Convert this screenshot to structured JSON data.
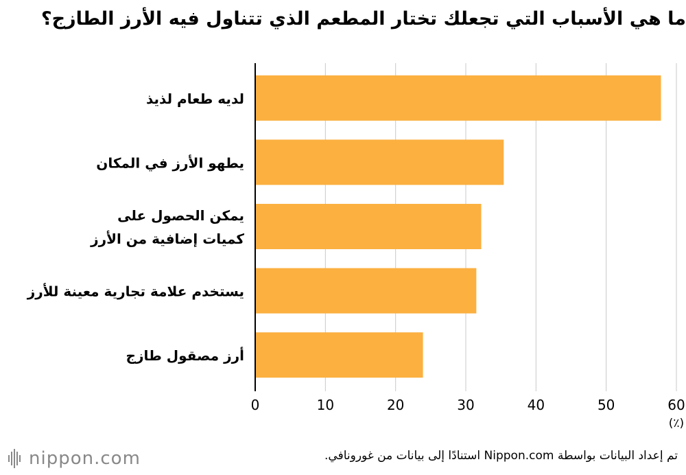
{
  "header": {
    "title": "ما هي الأسباب التي تجعلك تختار المطعم الذي تتناول فيه الأرز الطازج؟"
  },
  "chart_data": {
    "type": "bar",
    "orientation": "horizontal",
    "title": "ما هي الأسباب التي تجعلك تختار المطعم الذي تتناول فيه الأرز الطازج؟",
    "categories": [
      [
        "لديه طعام لذيذ"
      ],
      [
        "يطهو الأرز في المكان"
      ],
      [
        "يمكن الحصول على",
        "كميات إضافية من الأرز"
      ],
      [
        "يستخدم علامة تجارية معينة للأرز"
      ],
      [
        "أرز مصقول طازج"
      ]
    ],
    "values": [
      57.8,
      35.4,
      32.2,
      31.5,
      23.9
    ],
    "xlim": [
      0,
      60
    ],
    "xticks": [
      "0",
      "10",
      "20",
      "30",
      "40",
      "50",
      "60"
    ],
    "unit_label": "(٪)",
    "grid": true,
    "bar_color": "#FBB040"
  },
  "footer": {
    "source": "تم إعداد البيانات بواسطة Nippon.com استنادًا إلى بيانات من غورونافي."
  },
  "logo": {
    "text": "nippon.com",
    "color": "#888888"
  }
}
